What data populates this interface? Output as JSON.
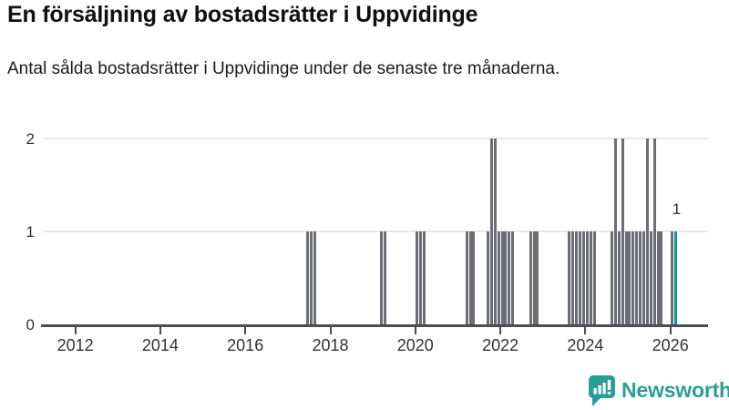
{
  "header": {
    "title": "En försäljning av bostadsrätter i Uppvidinge",
    "subtitle": "Antal sålda bostadsrätter i Uppvidinge under de senaste tre månaderna."
  },
  "chart_data": {
    "type": "bar",
    "title": "En försäljning av bostadsrätter i Uppvidinge",
    "subtitle": "Antal sålda bostadsrätter i Uppvidinge under de senaste tre månaderna.",
    "x_axis": {
      "tick_labels": [
        "2012",
        "2014",
        "2016",
        "2018",
        "2020",
        "2022",
        "2024",
        "2026"
      ],
      "range_years": [
        2011.25,
        2026.9
      ]
    },
    "y_axis": {
      "tick_labels": [
        "0",
        "1",
        "2"
      ],
      "range": [
        0,
        2
      ],
      "gridlines_at": [
        1,
        2
      ]
    },
    "grid": true,
    "legend": "none",
    "bar_color": "#6d6d75",
    "highlight_color": "#009c9b",
    "annotation": {
      "text": "1",
      "date": "2026-02"
    },
    "series": [
      {
        "date": "2017-06",
        "value": 1
      },
      {
        "date": "2017-07",
        "value": 1
      },
      {
        "date": "2017-08",
        "value": 1
      },
      {
        "date": "2019-03",
        "value": 1
      },
      {
        "date": "2019-04",
        "value": 1
      },
      {
        "date": "2020-01",
        "value": 1
      },
      {
        "date": "2020-02",
        "value": 1
      },
      {
        "date": "2020-03",
        "value": 1
      },
      {
        "date": "2021-03",
        "value": 1
      },
      {
        "date": "2021-04",
        "value": 1
      },
      {
        "date": "2021-05",
        "value": 1
      },
      {
        "date": "2021-09",
        "value": 1
      },
      {
        "date": "2021-10",
        "value": 2
      },
      {
        "date": "2021-11",
        "value": 2
      },
      {
        "date": "2021-12",
        "value": 1
      },
      {
        "date": "2022-01",
        "value": 1
      },
      {
        "date": "2022-02",
        "value": 1
      },
      {
        "date": "2022-03",
        "value": 1
      },
      {
        "date": "2022-04",
        "value": 1
      },
      {
        "date": "2022-09",
        "value": 1
      },
      {
        "date": "2022-10",
        "value": 1
      },
      {
        "date": "2022-11",
        "value": 1
      },
      {
        "date": "2023-08",
        "value": 1
      },
      {
        "date": "2023-09",
        "value": 1
      },
      {
        "date": "2023-10",
        "value": 1
      },
      {
        "date": "2023-11",
        "value": 1
      },
      {
        "date": "2023-12",
        "value": 1
      },
      {
        "date": "2024-01",
        "value": 1
      },
      {
        "date": "2024-02",
        "value": 1
      },
      {
        "date": "2024-03",
        "value": 1
      },
      {
        "date": "2024-08",
        "value": 1
      },
      {
        "date": "2024-09",
        "value": 2
      },
      {
        "date": "2024-10",
        "value": 1
      },
      {
        "date": "2024-11",
        "value": 2
      },
      {
        "date": "2024-12",
        "value": 1
      },
      {
        "date": "2025-01",
        "value": 1
      },
      {
        "date": "2025-02",
        "value": 1
      },
      {
        "date": "2025-03",
        "value": 1
      },
      {
        "date": "2025-04",
        "value": 1
      },
      {
        "date": "2025-05",
        "value": 1
      },
      {
        "date": "2025-06",
        "value": 2
      },
      {
        "date": "2025-07",
        "value": 1
      },
      {
        "date": "2025-08",
        "value": 2
      },
      {
        "date": "2025-09",
        "value": 1
      },
      {
        "date": "2025-10",
        "value": 1
      },
      {
        "date": "2026-01",
        "value": 1
      },
      {
        "date": "2026-02",
        "value": 1,
        "highlight": true
      }
    ]
  },
  "footer": {
    "brand": "Newsworthy",
    "brand_color": "#2a9d95",
    "logo_icon": "newsworthy-speech-bubble-bar-chart-icon"
  }
}
